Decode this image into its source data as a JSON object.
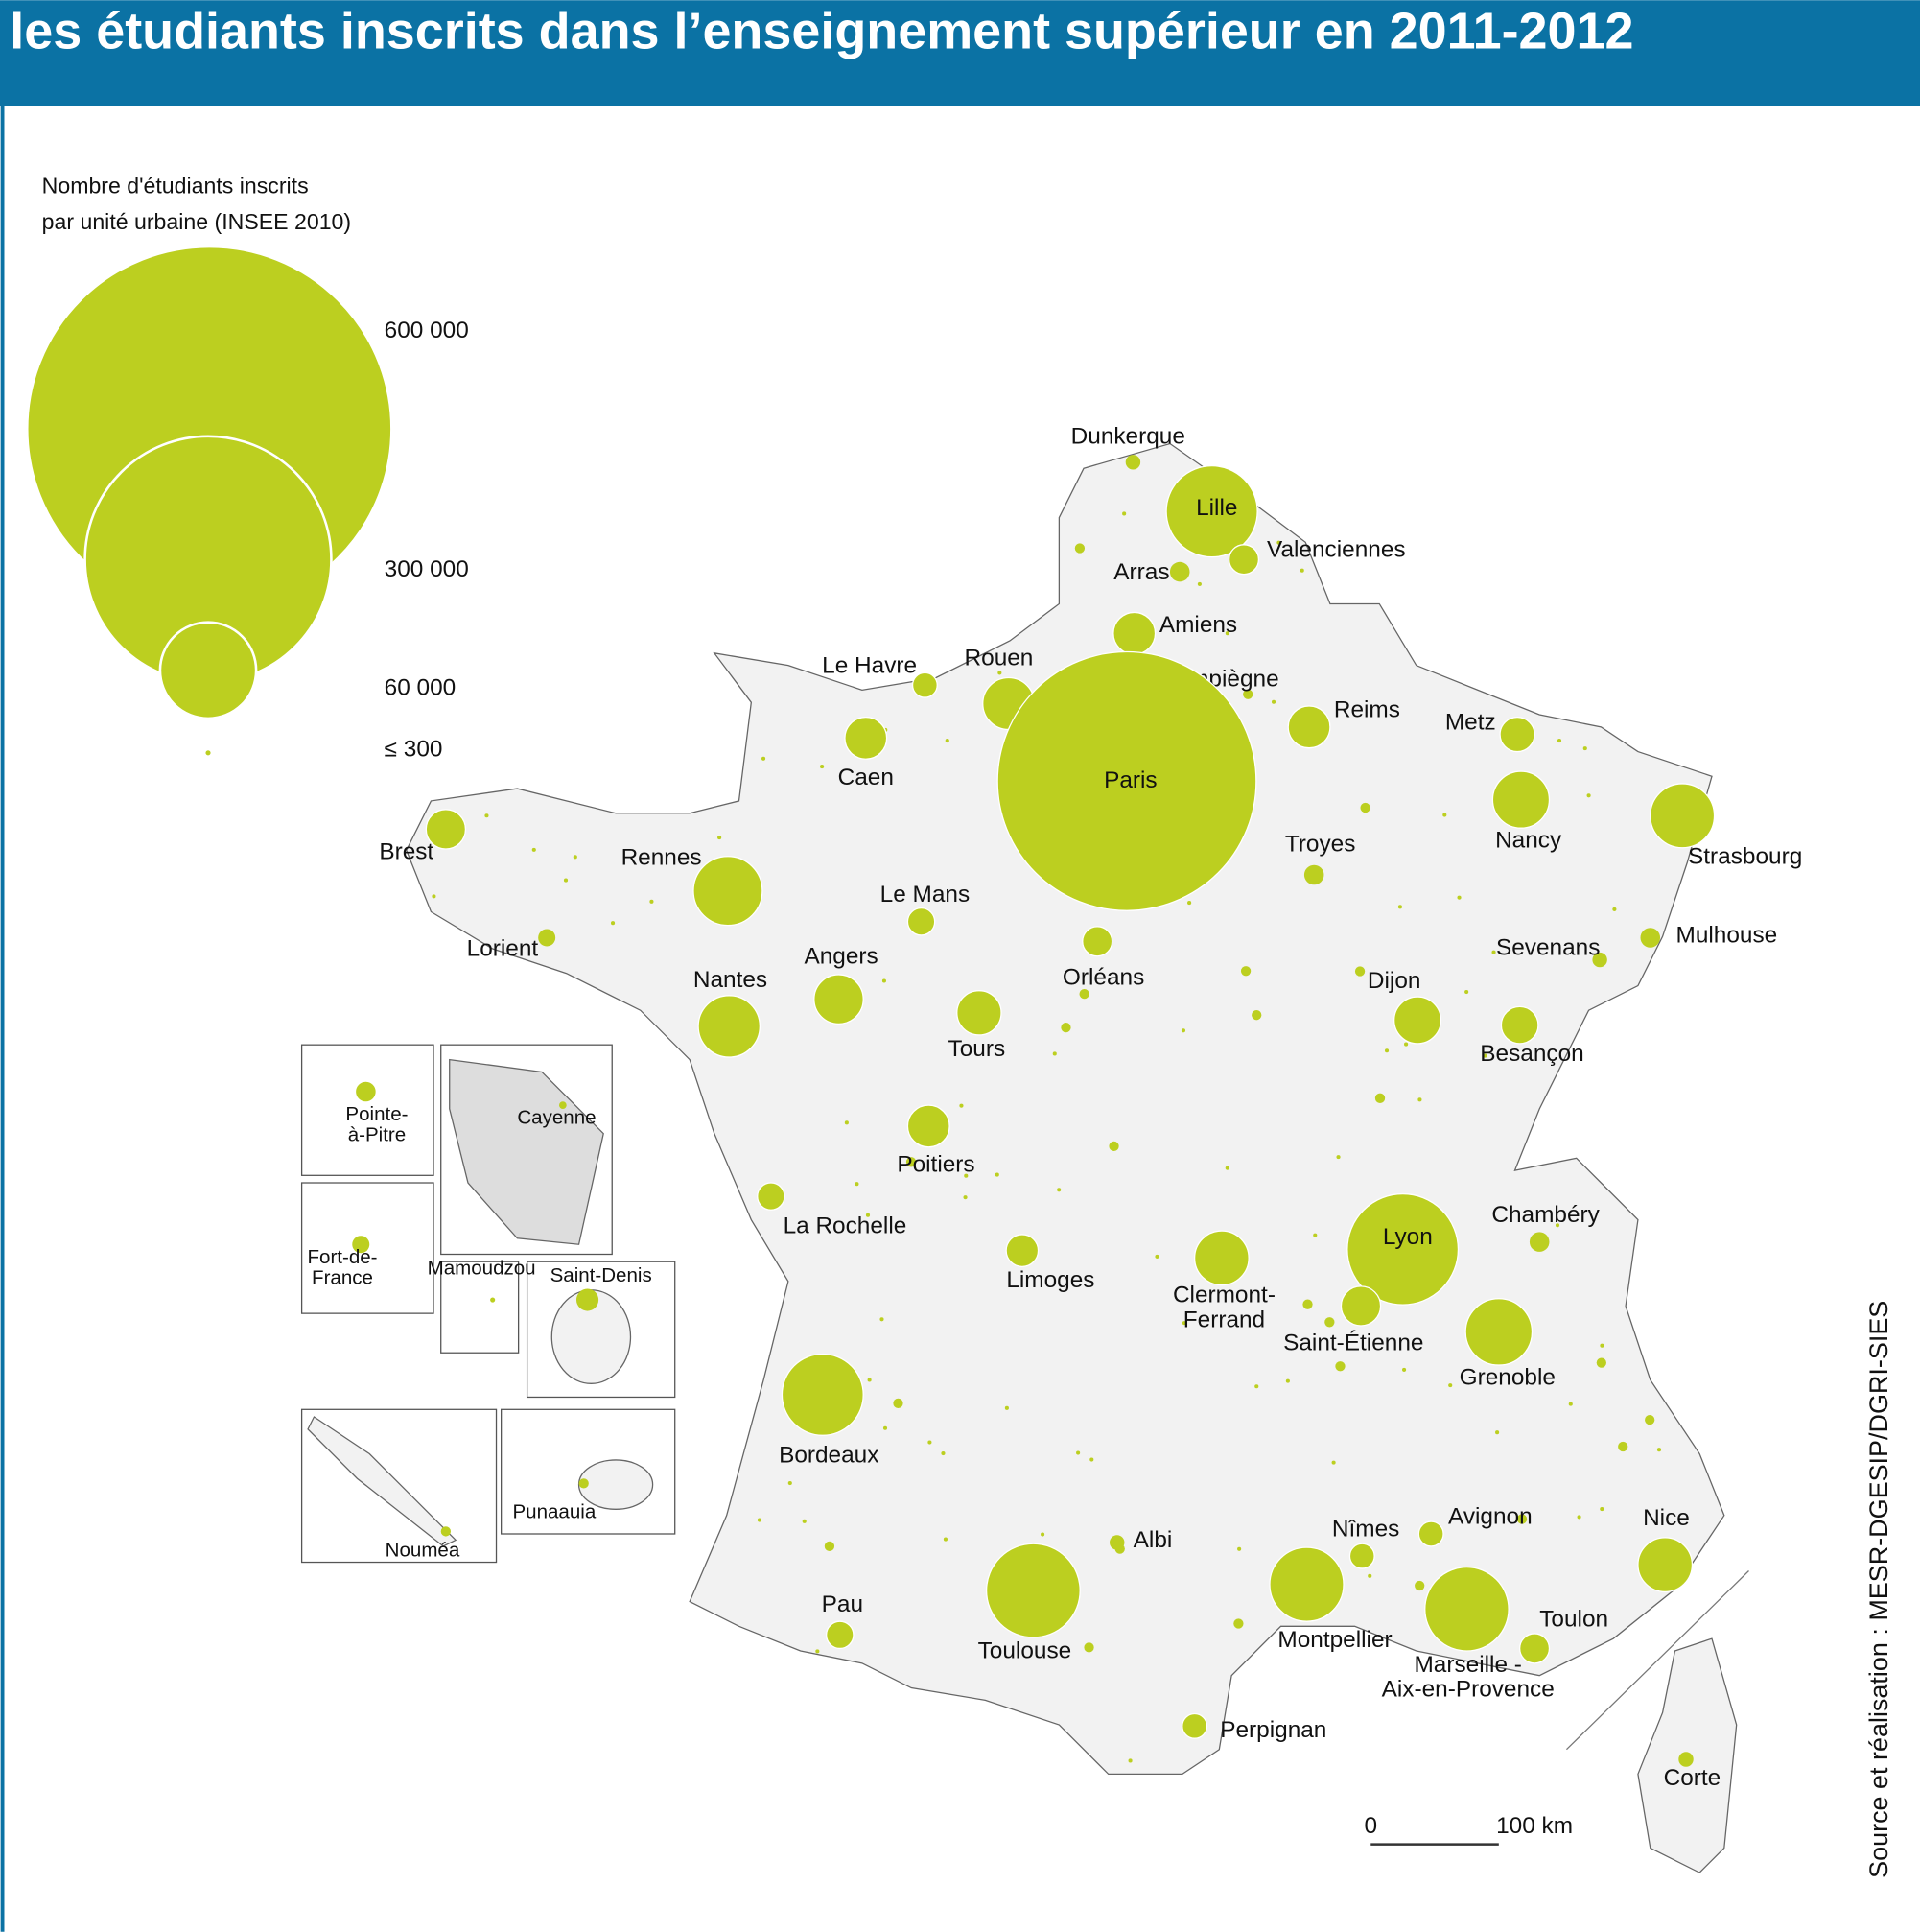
{
  "title": "les étudiants inscrits dans l’enseignement supérieur en 2011-2012",
  "legend": {
    "title": [
      "Nombre d'étudiants inscrits",
      "par unité urbaine (INSEE 2010)"
    ],
    "sizes": [
      "600 000",
      "300 000",
      "60 000",
      "≤ 300"
    ]
  },
  "cities": [
    [
      "Dunkerque"
    ],
    [
      "Lille"
    ],
    [
      "Valenciennes"
    ],
    [
      "Arras"
    ],
    [
      "Amiens"
    ],
    [
      "Le Havre"
    ],
    [
      "Rouen"
    ],
    [
      "Compiègne"
    ],
    [
      "Reims"
    ],
    [
      "Metz"
    ],
    [
      "Caen"
    ],
    [
      "Paris"
    ],
    [
      "Brest"
    ],
    [
      "Nancy"
    ],
    [
      "Strasbourg"
    ],
    [
      "Rennes"
    ],
    [
      "Troyes"
    ],
    [
      "Le Mans"
    ],
    [
      "Mulhouse"
    ],
    [
      "Lorient"
    ],
    [
      "Sevenans"
    ],
    [
      "Orléans"
    ],
    [
      "Angers"
    ],
    [
      "Nantes"
    ],
    [
      "Dijon"
    ],
    [
      "Tours"
    ],
    [
      "Besançon"
    ],
    [
      "Poitiers"
    ],
    [
      "La Rochelle"
    ],
    [
      "Chambéry"
    ],
    [
      "Lyon"
    ],
    [
      "Limoges"
    ],
    [
      "Clermont-",
      "Ferrand"
    ],
    [
      "Saint-Étienne"
    ],
    [
      "Grenoble"
    ],
    [
      "Bordeaux"
    ],
    [
      "Albi"
    ],
    [
      "Nîmes"
    ],
    [
      "Avignon"
    ],
    [
      "Nice"
    ],
    [
      "Montpellier"
    ],
    [
      "Toulouse"
    ],
    [
      "Marseille -",
      "Aix-en-Provence"
    ],
    [
      "Toulon"
    ],
    [
      "Pau"
    ],
    [
      "Perpignan"
    ],
    [
      "Corte"
    ]
  ],
  "overseas": [
    [
      "Pointe-",
      "à-Pitre"
    ],
    [
      "Cayenne"
    ],
    [
      "Fort-de-",
      "France"
    ],
    [
      "Mamoudzou"
    ],
    [
      "Saint-Denis"
    ],
    [
      "Nouméa"
    ],
    [
      "Punaauia"
    ]
  ],
  "scale": [
    "0",
    "100 km"
  ],
  "source": "Source et réalisation : MESR-DGESIP/DGRI-SIES"
}
